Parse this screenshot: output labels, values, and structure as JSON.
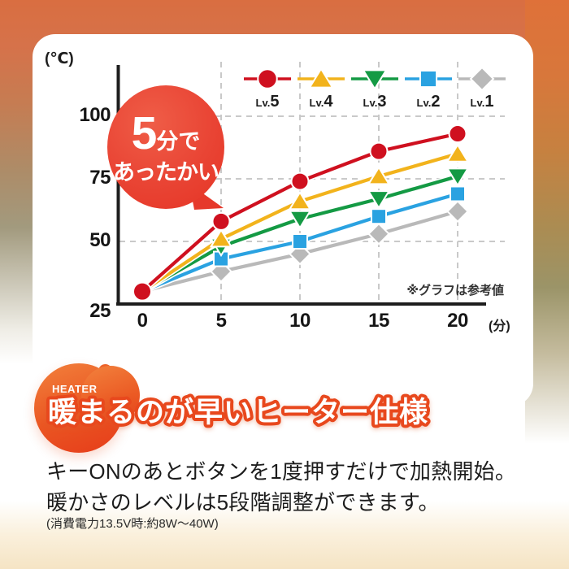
{
  "chart": {
    "y_unit": "(℃)",
    "x_unit": "(分)",
    "note": "※グラフは参考値",
    "bubble": {
      "big": "5",
      "small": "分で",
      "line2": "あったかい"
    }
  },
  "chart_data": {
    "type": "line",
    "title": "",
    "xlabel": "(分)",
    "ylabel": "(℃)",
    "x": [
      0,
      5,
      10,
      15,
      20
    ],
    "x_ticks": [
      0,
      5,
      10,
      15,
      20
    ],
    "y_ticks": [
      100,
      75,
      50,
      25
    ],
    "xlim": [
      0,
      22
    ],
    "ylim": [
      25,
      115
    ],
    "grid": true,
    "legend_position": "top-right",
    "series": [
      {
        "name": "Lv.5",
        "color": "#cf101f",
        "marker": "circle",
        "values": [
          30,
          58,
          74,
          86,
          93
        ]
      },
      {
        "name": "Lv.4",
        "color": "#f2b31c",
        "marker": "triangle-up",
        "values": [
          30,
          51,
          66,
          76,
          85
        ]
      },
      {
        "name": "Lv.3",
        "color": "#149a44",
        "marker": "triangle-down",
        "values": [
          30,
          48,
          59,
          67,
          76
        ]
      },
      {
        "name": "Lv.2",
        "color": "#2aa2e1",
        "marker": "square",
        "values": [
          30,
          43,
          50,
          60,
          69
        ]
      },
      {
        "name": "Lv.1",
        "color": "#b9b9b9",
        "marker": "diamond",
        "values": [
          30,
          38,
          45,
          53,
          62
        ]
      }
    ],
    "annotations": [
      "5分であったかい",
      "※グラフは参考値"
    ]
  },
  "info": {
    "badge": "HEATER",
    "heading": "暖まるのが早いヒーター仕様",
    "line1": "キーONのあとボタンを1度押すだけで加熱開始。",
    "line2": "暖かさのレベルは5段階調整ができます。",
    "note": "(消費電力13.5V時:約8W〜40W)"
  },
  "colors": {
    "accent_orange": "#e8481d",
    "bubble_red": "#e73a2a",
    "axis": "#1d1d1d",
    "grid": "#c9c9c9",
    "card_bg": "#ffffff"
  }
}
